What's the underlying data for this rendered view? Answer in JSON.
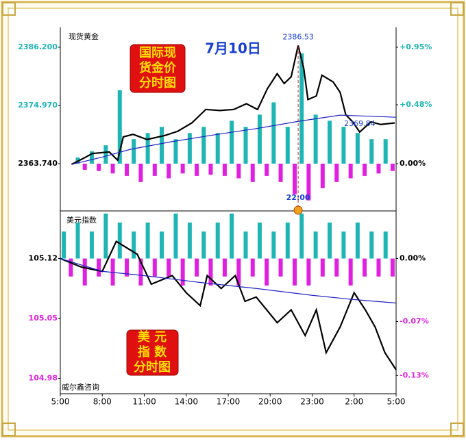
{
  "date": "7月10日",
  "source": "威尔鑫咨询",
  "chart_data": [
    {
      "type": "line",
      "title": "现货黄金",
      "title_lines": [
        "国际现",
        "货金价",
        "分时图"
      ],
      "xlim": [
        0,
        24
      ],
      "ylim": [
        2354.76,
        2388.97
      ],
      "yticks": [
        {
          "value": 2386.2,
          "label": "2386.200"
        },
        {
          "value": 2374.97,
          "label": "2374.970"
        },
        {
          "value": 2363.74,
          "label": "2363.740"
        }
      ],
      "y2lim": [
        -0.38,
        1.067
      ],
      "y2ticks": [
        {
          "value": 0.95,
          "label": "+0.95%"
        },
        {
          "value": 0.48,
          "label": "+0.48%"
        },
        {
          "value": 0,
          "label": "0.00%"
        }
      ],
      "pos_color": "#1fb5b5",
      "neg_color": "#e020e0",
      "zero_color": "#000000",
      "series": [
        {
          "color": "#000000",
          "x": [
            0.8,
            1.6,
            2.3,
            3.5,
            4.1,
            4.5,
            5.2,
            6.2,
            7.5,
            8.4,
            9.4,
            10.4,
            11.4,
            12.4,
            13.3,
            14.1,
            14.8,
            15.5,
            16,
            16.5,
            17,
            17.4,
            17.7,
            18.3,
            18.7,
            19.5,
            20,
            20.4,
            20.9,
            21.4,
            22.2,
            22.9,
            23.9
          ],
          "values": [
            2363.6,
            2364.7,
            2365.7,
            2366,
            2364.4,
            2368.9,
            2369.4,
            2368.4,
            2369.2,
            2370,
            2371.6,
            2374.2,
            2374,
            2374.2,
            2375.3,
            2374.2,
            2378.2,
            2381.1,
            2379.2,
            2380.5,
            2386.53,
            2382.1,
            2376.1,
            2376.8,
            2380.8,
            2379.5,
            2377.5,
            2373.2,
            2371.8,
            2369.84,
            2371.8,
            2371.3,
            2371.6
          ]
        },
        {
          "color": "#2020c0",
          "x": [
            0.8,
            3,
            5,
            8,
            11,
            14,
            17,
            20,
            24
          ],
          "values": [
            2363.6,
            2365,
            2366.5,
            2368,
            2369.3,
            2370.5,
            2371.9,
            2373.1,
            2372.7
          ]
        }
      ],
      "bars": {
        "x": [
          0.25,
          0.75,
          1.25,
          1.75,
          2.25,
          2.75,
          3.25,
          3.75,
          4.25,
          4.75,
          5.25,
          5.75,
          6.25,
          6.75,
          7.25,
          7.75,
          8.25,
          8.75,
          9.25,
          9.75,
          10.25,
          10.75,
          11.25,
          11.75,
          12.25,
          12.75,
          13.25,
          13.75,
          14.25,
          14.75,
          15.25,
          15.75,
          16.25,
          16.75,
          17.25,
          17.75,
          18.25,
          18.75,
          19.25,
          19.75,
          20.25,
          20.75,
          21.25,
          21.75,
          22.25,
          22.75,
          23.25,
          23.75
        ],
        "values": [
          0,
          0,
          0.05,
          -0.05,
          0.1,
          -0.06,
          0.15,
          -0.08,
          0.6,
          -0.1,
          0.2,
          -0.15,
          0.25,
          -0.1,
          0.3,
          -0.12,
          0.2,
          -0.08,
          0.25,
          -0.1,
          0.3,
          -0.09,
          0.25,
          -0.1,
          0.35,
          -0.12,
          0.3,
          -0.15,
          0.4,
          -0.1,
          0.5,
          -0.15,
          0.3,
          -0.25,
          0.9,
          -0.3,
          0.4,
          -0.2,
          0.35,
          -0.15,
          0.3,
          -0.12,
          0.25,
          -0.1,
          0.2,
          -0.08,
          0.2,
          -0.06
        ]
      },
      "annotations": [
        {
          "text": "2386.53",
          "x": 17,
          "y": 2386.53
        },
        {
          "text": "2369.84",
          "x": 21.4,
          "y": 2369.84
        },
        {
          "text": "22:00",
          "x": 17
        }
      ]
    },
    {
      "type": "line",
      "title": "美元指数",
      "title_lines": [
        "美 元",
        "指 数",
        "分时图"
      ],
      "xlim": [
        0,
        24
      ],
      "xticks": [
        {
          "value": 0,
          "label": "5:00"
        },
        {
          "value": 3,
          "label": "8:00"
        },
        {
          "value": 6,
          "label": "11:00"
        },
        {
          "value": 9,
          "label": "14:00"
        },
        {
          "value": 12,
          "label": "17:00"
        },
        {
          "value": 15,
          "label": "20:00"
        },
        {
          "value": 18,
          "label": "23:00"
        },
        {
          "value": 21,
          "label": "2:00"
        },
        {
          "value": 24,
          "label": "5:00"
        }
      ],
      "ylim": [
        104.966,
        105.174
      ],
      "yticks": [
        105.12,
        105.05,
        104.98
      ],
      "y2lim": [
        -0.1465,
        0.0514
      ],
      "y2ticks": [
        {
          "value": 0,
          "label": "0.00%"
        },
        {
          "value": -0.07,
          "label": "-0.07%"
        },
        {
          "value": -0.13,
          "label": "-0.13%"
        }
      ],
      "pos_color": "#1fb5b5",
      "neg_color": "#e020e0",
      "zero_color": "#000000",
      "series": [
        {
          "color": "#000000",
          "x": [
            0,
            1.5,
            3,
            4,
            5.5,
            6.5,
            8,
            9,
            10,
            10.5,
            11.5,
            12.5,
            13.2,
            14,
            15.5,
            16.5,
            17.5,
            18.3,
            19,
            20,
            21,
            21.8,
            22.5,
            23.2,
            24
          ],
          "values": [
            105.12,
            105.11,
            105.105,
            105.14,
            105.125,
            105.09,
            105.1,
            105.08,
            105.065,
            105.1,
            105.085,
            105.1,
            105.07,
            105.075,
            105.045,
            105.06,
            105.03,
            105.06,
            105.01,
            105.04,
            105.08,
            105.06,
            105.04,
            105.01,
            104.99
          ]
        },
        {
          "color": "#2020c0",
          "x": [
            0,
            3,
            6,
            10,
            14,
            18,
            21,
            24
          ],
          "values": [
            105.12,
            105.105,
            105.1,
            105.092,
            105.085,
            105.077,
            105.072,
            105.068
          ]
        }
      ],
      "bars": {
        "x": [
          0.25,
          0.75,
          1.25,
          1.75,
          2.25,
          2.75,
          3.25,
          3.75,
          4.25,
          4.75,
          5.25,
          5.75,
          6.25,
          6.75,
          7.25,
          7.75,
          8.25,
          8.75,
          9.25,
          9.75,
          10.25,
          10.75,
          11.25,
          11.75,
          12.25,
          12.75,
          13.25,
          13.75,
          14.25,
          14.75,
          15.25,
          15.75,
          16.25,
          16.75,
          17.25,
          17.75,
          18.25,
          18.75,
          19.25,
          19.75,
          20.25,
          20.75,
          21.25,
          21.75,
          22.25,
          22.75,
          23.25,
          23.75
        ],
        "values": [
          0.03,
          -0.02,
          0.04,
          -0.03,
          0.03,
          -0.02,
          0.05,
          -0.03,
          0.04,
          -0.02,
          0.03,
          -0.03,
          0.04,
          -0.02,
          0.03,
          -0.02,
          0.05,
          -0.03,
          0.04,
          -0.02,
          0.03,
          -0.03,
          0.04,
          -0.02,
          0.05,
          -0.03,
          0.03,
          -0.02,
          0.04,
          -0.03,
          0.03,
          -0.02,
          0.04,
          -0.03,
          0.05,
          -0.03,
          0.03,
          -0.02,
          0.04,
          -0.02,
          0.03,
          -0.03,
          0.04,
          -0.02,
          0.03,
          -0.02,
          0.03,
          -0.02
        ]
      }
    }
  ]
}
